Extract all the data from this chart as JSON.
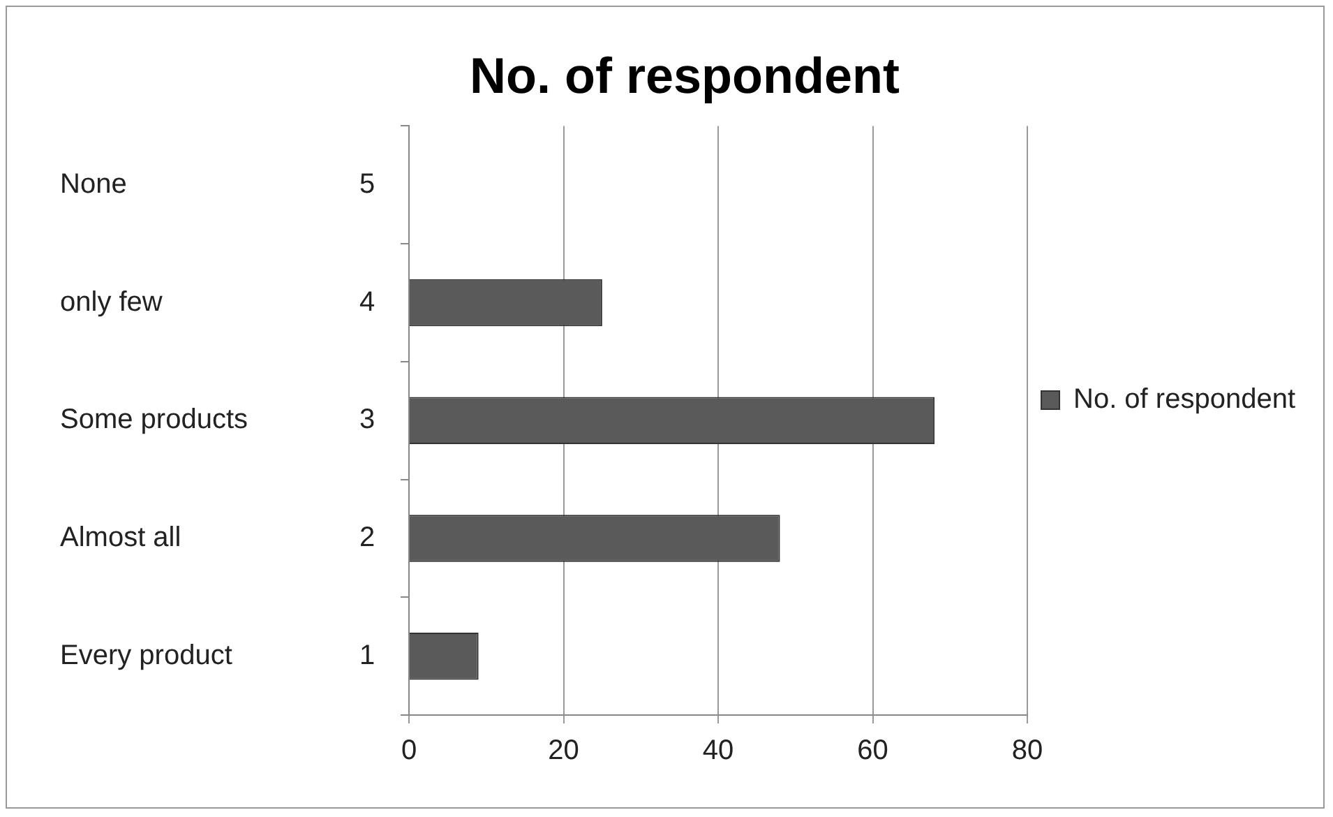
{
  "chart_data": {
    "type": "bar",
    "orientation": "horizontal",
    "title": "No. of respondent",
    "categories": [
      "None",
      "only few",
      "Some products",
      "Almost all",
      "Every product"
    ],
    "series": [
      {
        "name": "No. of respondent",
        "color": "#5a5a5a",
        "values": [
          0,
          25,
          68,
          48,
          9
        ]
      }
    ],
    "annotations": [
      "5",
      "4",
      "3",
      "2",
      "1"
    ],
    "xlim": [
      0,
      80
    ],
    "xticks": [
      0,
      20,
      40,
      60,
      80
    ],
    "grid": "x",
    "legend": "right"
  }
}
